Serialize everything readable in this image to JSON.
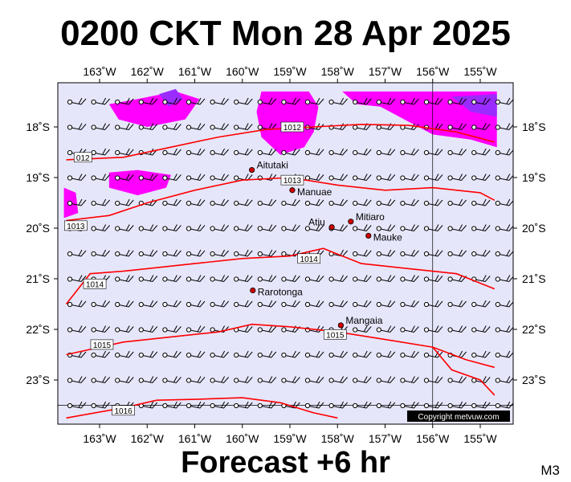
{
  "title": "0200 CKT Mon 28 Apr 2025",
  "subtitle": "Forecast +6 hr",
  "model_tag": "M3",
  "copyright": "Copyright metvuw.com",
  "colors": {
    "background": "#e6e6fb",
    "pressure_line": "#ff0000",
    "rain_light": "#ff00ff",
    "rain_heavy": "#9a2cff"
  },
  "axes": {
    "lon_labels": [
      "163˚W",
      "162˚W",
      "161˚W",
      "160˚W",
      "159˚W",
      "158˚W",
      "157˚W",
      "156˚W",
      "155˚W"
    ],
    "lat_labels": [
      "18˚S",
      "19˚S",
      "20˚S",
      "21˚S",
      "22˚S",
      "23˚S"
    ],
    "lon_values": [
      -163,
      -162,
      -161,
      -160,
      -159,
      -158,
      -157,
      -156,
      -155
    ],
    "lat_values": [
      -18,
      -19,
      -20,
      -21,
      -22,
      -23
    ]
  },
  "places": [
    {
      "name": "Aitutaki",
      "lon": -159.8,
      "lat": -18.85
    },
    {
      "name": "Manuae",
      "lon": -158.95,
      "lat": -19.25
    },
    {
      "name": "Mitiaro",
      "lon": -157.72,
      "lat": -19.87
    },
    {
      "name": "Atiu",
      "lon": -158.12,
      "lat": -19.98
    },
    {
      "name": "Mauke",
      "lon": -157.35,
      "lat": -20.15
    },
    {
      "name": "Rarotonga",
      "lon": -159.78,
      "lat": -21.23
    },
    {
      "name": "Mangaia",
      "lon": -157.93,
      "lat": -21.92
    }
  ],
  "isobars": [
    {
      "label": "1012",
      "label_lon": -158.95,
      "label_lat": -18.0,
      "alt_label": "012",
      "alt_lon": -163.35,
      "alt_lat": -18.6,
      "path": [
        [
          -163.7,
          -18.65
        ],
        [
          -162.5,
          -18.6
        ],
        [
          -161.5,
          -18.4
        ],
        [
          -160.5,
          -18.2
        ],
        [
          -159.5,
          -18.05
        ],
        [
          -158.5,
          -18.0
        ],
        [
          -157.5,
          -17.95
        ],
        [
          -156.5,
          -17.97
        ],
        [
          -155.5,
          -18.1
        ],
        [
          -154.7,
          -18.3
        ]
      ]
    },
    {
      "label": "1013",
      "label_lon": -158.95,
      "label_lat": -19.05,
      "alt_label": "1013",
      "alt_lon": -163.5,
      "alt_lat": -19.95,
      "path": [
        [
          -163.7,
          -19.85
        ],
        [
          -162.8,
          -19.75
        ],
        [
          -162.0,
          -19.5
        ],
        [
          -161.0,
          -19.25
        ],
        [
          -160.0,
          -19.05
        ],
        [
          -159.0,
          -19.0
        ],
        [
          -158.0,
          -19.15
        ],
        [
          -157.0,
          -19.25
        ],
        [
          -156.0,
          -19.2
        ],
        [
          -155.0,
          -19.3
        ],
        [
          -154.7,
          -19.45
        ]
      ]
    },
    {
      "label": "1014",
      "label_lon": -158.6,
      "label_lat": -20.6,
      "alt_label": "1014",
      "alt_lon": -163.1,
      "alt_lat": -21.1,
      "path": [
        [
          -163.7,
          -21.5
        ],
        [
          -163.2,
          -20.9
        ],
        [
          -162.5,
          -20.85
        ],
        [
          -162.0,
          -20.8
        ],
        [
          -161.0,
          -20.7
        ],
        [
          -160.0,
          -20.6
        ],
        [
          -159.0,
          -20.55
        ],
        [
          -158.3,
          -20.4
        ],
        [
          -157.5,
          -20.7
        ],
        [
          -156.5,
          -20.8
        ],
        [
          -155.5,
          -20.9
        ],
        [
          -154.7,
          -21.2
        ]
      ]
    },
    {
      "label": "1015",
      "label_lon": -158.05,
      "label_lat": -22.1,
      "alt_label": "1015",
      "alt_lon": -162.95,
      "alt_lat": -22.3,
      "path": [
        [
          -163.7,
          -22.5
        ],
        [
          -162.5,
          -22.25
        ],
        [
          -161.5,
          -22.15
        ],
        [
          -160.5,
          -22.05
        ],
        [
          -159.8,
          -21.9
        ],
        [
          -159.0,
          -21.95
        ],
        [
          -158.0,
          -22.05
        ],
        [
          -157.0,
          -22.2
        ],
        [
          -156.0,
          -22.35
        ],
        [
          -155.3,
          -22.6
        ],
        [
          -154.7,
          -22.75
        ]
      ]
    },
    {
      "label": "1016",
      "label_lon": -162.5,
      "label_lat": -23.6,
      "alt_label": "",
      "alt_lon": 0,
      "alt_lat": 0,
      "path": [
        [
          -163.7,
          -23.75
        ],
        [
          -162.5,
          -23.55
        ],
        [
          -161.8,
          -23.4
        ],
        [
          -160.9,
          -23.38
        ],
        [
          -160.0,
          -23.35
        ],
        [
          -159.2,
          -23.45
        ],
        [
          -158.5,
          -23.65
        ],
        [
          -158.0,
          -23.75
        ]
      ]
    },
    {
      "label": "",
      "label_lon": 0,
      "label_lat": 0,
      "alt_label": "",
      "alt_lon": 0,
      "alt_lat": 0,
      "path": [
        [
          -156.0,
          -22.35
        ],
        [
          -155.6,
          -22.8
        ],
        [
          -155.0,
          -23.0
        ],
        [
          -154.7,
          -23.3
        ]
      ]
    }
  ],
  "rain_areas": [
    {
      "level": "light",
      "points": [
        [
          -162.8,
          -17.55
        ],
        [
          -162.2,
          -17.45
        ],
        [
          -161.4,
          -17.3
        ],
        [
          -160.9,
          -17.45
        ],
        [
          -161.2,
          -17.85
        ],
        [
          -162.0,
          -18.0
        ],
        [
          -162.6,
          -17.85
        ]
      ]
    },
    {
      "level": "heavy",
      "points": [
        [
          -161.75,
          -17.35
        ],
        [
          -161.4,
          -17.25
        ],
        [
          -161.25,
          -17.45
        ],
        [
          -161.55,
          -17.6
        ]
      ]
    },
    {
      "level": "light",
      "points": [
        [
          -159.6,
          -17.3
        ],
        [
          -158.6,
          -17.3
        ],
        [
          -158.4,
          -17.6
        ],
        [
          -158.5,
          -18.1
        ],
        [
          -158.7,
          -18.4
        ],
        [
          -159.2,
          -18.55
        ],
        [
          -159.6,
          -18.2
        ],
        [
          -159.7,
          -17.7
        ]
      ]
    },
    {
      "level": "light",
      "points": [
        [
          -162.8,
          -18.9
        ],
        [
          -162.2,
          -18.85
        ],
        [
          -161.5,
          -18.95
        ],
        [
          -161.6,
          -19.2
        ],
        [
          -162.2,
          -19.35
        ],
        [
          -162.8,
          -19.2
        ]
      ]
    },
    {
      "level": "light",
      "points": [
        [
          -163.75,
          -19.2
        ],
        [
          -163.5,
          -19.3
        ],
        [
          -163.45,
          -19.7
        ],
        [
          -163.75,
          -19.8
        ]
      ]
    },
    {
      "level": "light",
      "points": [
        [
          -157.9,
          -17.3
        ],
        [
          -154.65,
          -17.3
        ],
        [
          -154.65,
          -18.4
        ],
        [
          -155.2,
          -18.25
        ],
        [
          -156.0,
          -18.15
        ],
        [
          -156.4,
          -17.95
        ],
        [
          -157.1,
          -17.6
        ],
        [
          -157.6,
          -17.55
        ]
      ]
    },
    {
      "level": "heavy",
      "points": [
        [
          -155.6,
          -17.4
        ],
        [
          -154.65,
          -17.35
        ],
        [
          -154.65,
          -17.8
        ],
        [
          -155.2,
          -17.7
        ]
      ]
    }
  ]
}
